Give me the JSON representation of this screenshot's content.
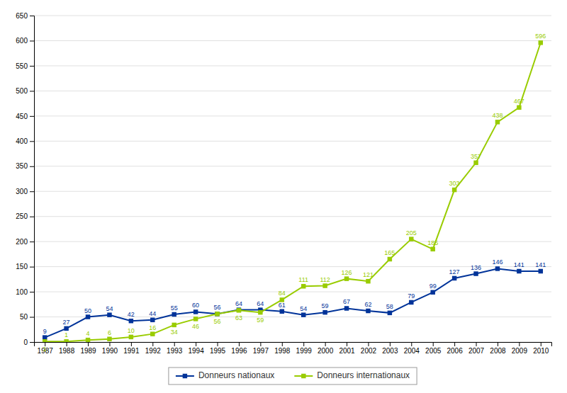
{
  "chart_data": {
    "type": "line",
    "x": [
      1987,
      1988,
      1989,
      1990,
      1991,
      1992,
      1993,
      1994,
      1995,
      1996,
      1997,
      1998,
      1999,
      2000,
      2001,
      2002,
      2003,
      2004,
      2005,
      2006,
      2007,
      2008,
      2009,
      2010
    ],
    "series": [
      {
        "name": "Donneurs nationaux",
        "color": "#003399",
        "marker": "square",
        "values": [
          9,
          27,
          50,
          54,
          42,
          44,
          55,
          60,
          56,
          64,
          64,
          61,
          54,
          59,
          67,
          62,
          58,
          79,
          99,
          127,
          136,
          146,
          141,
          141
        ]
      },
      {
        "name": "Donneurs internationaux",
        "color": "#99cc00",
        "marker": "square",
        "values": [
          1,
          1,
          4,
          6,
          10,
          16,
          34,
          46,
          56,
          63,
          59,
          84,
          111,
          112,
          126,
          121,
          165,
          205,
          185,
          303,
          357,
          438,
          467,
          596
        ]
      }
    ],
    "xlim": [
      1986.5,
      2010.5
    ],
    "xticks": [
      1987,
      1988,
      1989,
      1990,
      1991,
      1992,
      1993,
      1994,
      1995,
      1996,
      1997,
      1998,
      1999,
      2000,
      2001,
      2002,
      2003,
      2004,
      2005,
      2006,
      2007,
      2008,
      2009,
      2010
    ],
    "ylim": [
      0,
      650
    ],
    "yticks": [
      0,
      50,
      100,
      150,
      200,
      250,
      300,
      350,
      400,
      450,
      500,
      550,
      600,
      650
    ],
    "grid": true,
    "legend": "bottom",
    "data_labels": true
  }
}
